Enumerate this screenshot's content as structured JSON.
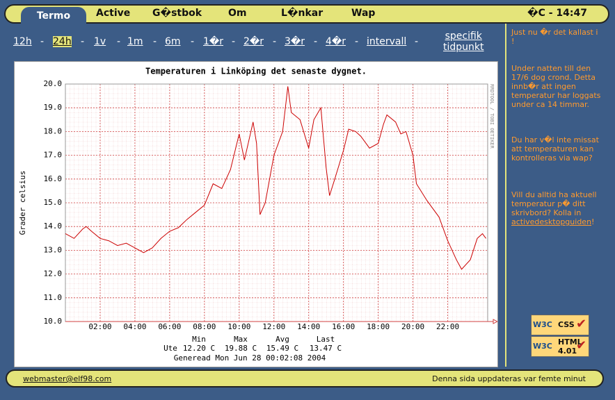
{
  "nav": {
    "active_tab": "Termo",
    "items": [
      "Active",
      "G�stbok",
      "Om",
      "L�nkar",
      "Wap"
    ],
    "status": "�C - 14:47"
  },
  "ranges": {
    "items": [
      "12h",
      "24h",
      "1v",
      "1m",
      "6m",
      "1�r",
      "2�r",
      "3�r",
      "4�r",
      "intervall"
    ],
    "separator": "-",
    "selected": "24h",
    "specific": [
      "specifik",
      "tidpunkt"
    ]
  },
  "sidebar": {
    "p1": "Just nu �r det kallast i !",
    "p2": "Under natten till den 17/6 dog crond. Detta innb�r att ingen temperatur har loggats under ca 14 timmar.",
    "p3": "Du har v�l inte missat att temperaturen kan kontrolleras via wap?",
    "p4": "Vill du alltid ha aktuell temperatur p� ditt skrivbord? Kolla in ",
    "p4_link": "activedesktopguiden",
    "p4_end": "!",
    "badges": [
      {
        "logo": "W3C",
        "name": "CSS"
      },
      {
        "logo": "W3C",
        "name": "HTML",
        "version": "4.01"
      }
    ]
  },
  "footer": {
    "email": "webmaster@elf98.com",
    "note": "Denna sida uppdateras var femte minut"
  },
  "chart_data": {
    "type": "line",
    "title": "Temperaturen i Linköping det senaste dygnet.",
    "y_label": "Grader celsius",
    "watermark": "RRDTOOL / TOBI OETIKER",
    "x": [
      0,
      0.5,
      1,
      1.2,
      1.5,
      2,
      2.5,
      3,
      3.5,
      4,
      4.5,
      5,
      5.5,
      6,
      6.5,
      7,
      7.5,
      8,
      8.5,
      9,
      9.5,
      10,
      10.3,
      10.8,
      11,
      11.2,
      11.5,
      12,
      12.5,
      12.8,
      13,
      13.5,
      14,
      14.3,
      14.7,
      15,
      15.2,
      15.5,
      16,
      16.3,
      16.7,
      17,
      17.5,
      18,
      18.3,
      18.5,
      19,
      19.3,
      19.6,
      20,
      20.2,
      20.8,
      21.5,
      22,
      22.5,
      22.8,
      23.3,
      23.7,
      24,
      24.2
    ],
    "series": [
      {
        "name": "Ute",
        "color": "#cc0000",
        "values": [
          13.7,
          13.5,
          13.9,
          14.0,
          13.8,
          13.5,
          13.4,
          13.2,
          13.3,
          13.1,
          12.9,
          13.1,
          13.5,
          13.8,
          13.95,
          14.3,
          14.6,
          14.9,
          15.8,
          15.6,
          16.4,
          17.9,
          16.8,
          18.4,
          17.5,
          14.5,
          15.0,
          17.0,
          18.0,
          19.9,
          18.8,
          18.5,
          17.3,
          18.5,
          19.0,
          16.5,
          15.3,
          16.0,
          17.2,
          18.1,
          18.0,
          17.8,
          17.3,
          17.5,
          18.3,
          18.7,
          18.4,
          17.9,
          18.0,
          17.0,
          15.8,
          15.1,
          14.4,
          13.4,
          12.6,
          12.2,
          12.6,
          13.5,
          13.7,
          13.5
        ]
      }
    ],
    "xlim": [
      0,
      24.3
    ],
    "ylim": [
      10,
      20
    ],
    "xticks": [
      {
        "value": 2,
        "label": "02:00"
      },
      {
        "value": 4,
        "label": "04:00"
      },
      {
        "value": 6,
        "label": "06:00"
      },
      {
        "value": 8,
        "label": "08:00"
      },
      {
        "value": 10,
        "label": "10:00"
      },
      {
        "value": 12,
        "label": "12:00"
      },
      {
        "value": 14,
        "label": "14:00"
      },
      {
        "value": 16,
        "label": "16:00"
      },
      {
        "value": 18,
        "label": "18:00"
      },
      {
        "value": 20,
        "label": "20:00"
      },
      {
        "value": 22,
        "label": "22:00"
      }
    ],
    "yticks": [
      {
        "value": 10,
        "label": "10.0"
      },
      {
        "value": 11,
        "label": "11.0"
      },
      {
        "value": 12,
        "label": "12.0"
      },
      {
        "value": 13,
        "label": "13.0"
      },
      {
        "value": 14,
        "label": "14.0"
      },
      {
        "value": 15,
        "label": "15.0"
      },
      {
        "value": 16,
        "label": "16.0"
      },
      {
        "value": 17,
        "label": "17.0"
      },
      {
        "value": 18,
        "label": "18.0"
      },
      {
        "value": 19,
        "label": "19.0"
      },
      {
        "value": 20,
        "label": "20.0"
      }
    ],
    "grid": true,
    "stats": {
      "headers": [
        "Min",
        "Max",
        "Avg",
        "Last"
      ],
      "row_label": "Ute",
      "values": [
        "12.20 C",
        "19.88 C",
        "15.49 C",
        "13.47 C"
      ],
      "generated": "Generead Mon Jun 28 00:02:08 2004"
    }
  }
}
